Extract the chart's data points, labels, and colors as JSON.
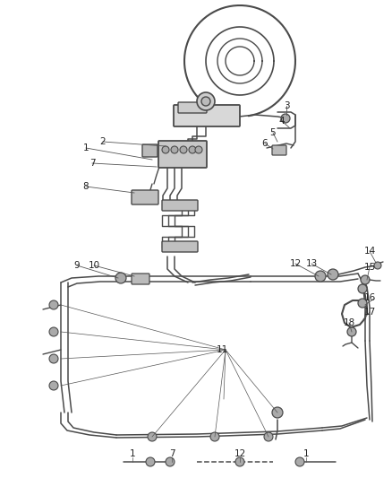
{
  "background_color": "#ffffff",
  "line_color": "#4a4a4a",
  "label_color": "#222222",
  "figsize": [
    4.38,
    5.33
  ],
  "dpi": 100
}
